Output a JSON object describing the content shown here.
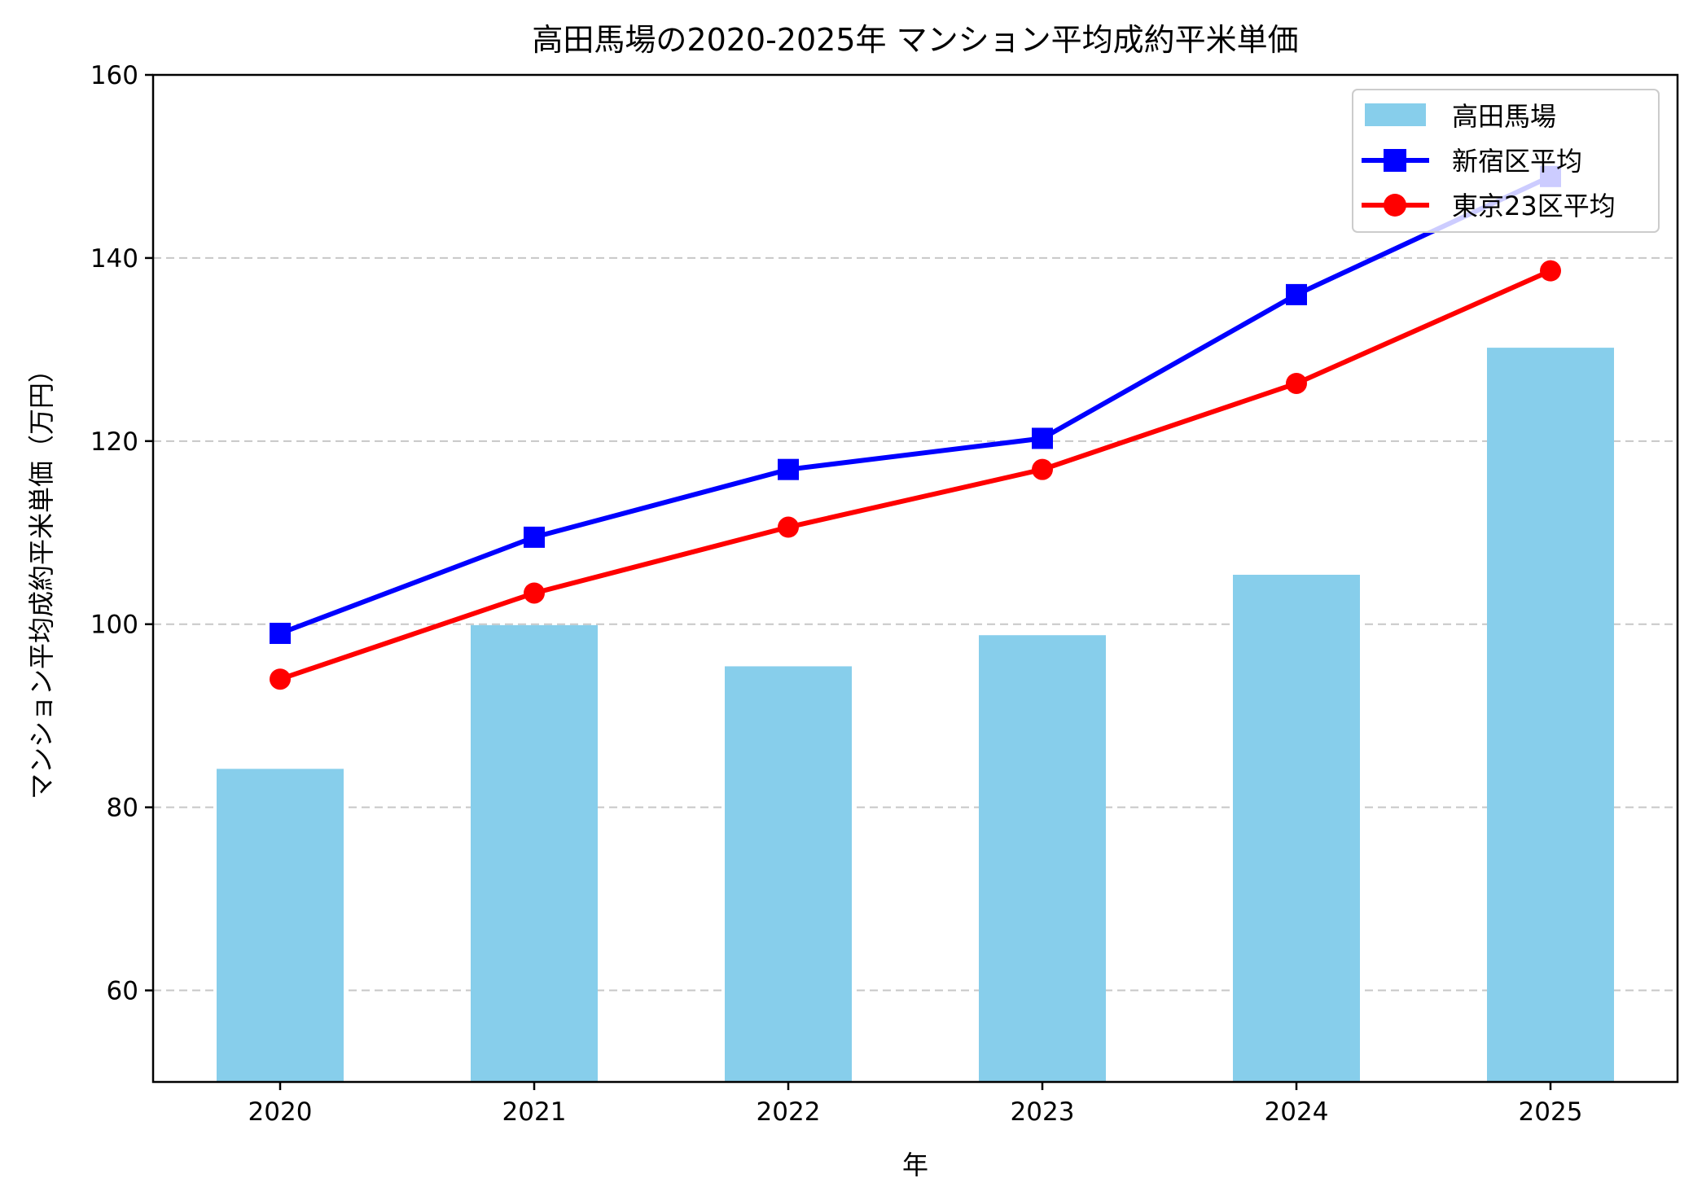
{
  "chart_data": {
    "type": "bar+line",
    "title": "高田馬場の2020-2025年 マンション平均成約平米単価",
    "xlabel": "年",
    "ylabel": "マンション平均成約平米単価（万円）",
    "categories": [
      "2020",
      "2021",
      "2022",
      "2023",
      "2024",
      "2025"
    ],
    "ylim": [
      50,
      160
    ],
    "yticks": [
      60,
      80,
      100,
      120,
      140,
      160
    ],
    "grid": "y-dashed",
    "legend_position": "top-right",
    "series": [
      {
        "name": "高田馬場",
        "kind": "bar",
        "color": "#87CEEB",
        "values": [
          84.2,
          99.9,
          95.4,
          98.8,
          105.4,
          130.2
        ]
      },
      {
        "name": "新宿区平均",
        "kind": "line",
        "marker": "square",
        "color": "#0000FF",
        "values": [
          99.0,
          109.5,
          116.9,
          120.3,
          136.0,
          148.9
        ]
      },
      {
        "name": "東京23区平均",
        "kind": "line",
        "marker": "circle",
        "color": "#FF0000",
        "values": [
          94.0,
          103.4,
          110.6,
          116.9,
          126.3,
          138.6
        ]
      }
    ]
  }
}
